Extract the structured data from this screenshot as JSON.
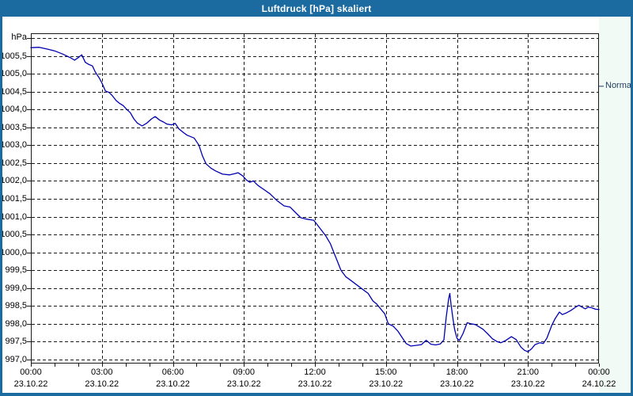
{
  "window": {
    "title": "Luftdruck [hPa] skaliert"
  },
  "colors": {
    "frame": "#1b6ba1",
    "titlebar": "#1b6ba1",
    "title_text": "#ffffff",
    "plot_bg": "#ffffff",
    "right_margin_bg": "#f1faf4",
    "grid": "#1a1a1a",
    "plot_border": "#1a1a1a",
    "line": "#0000b0",
    "axis_label": "#000000",
    "normal_label": "#1f3a5f"
  },
  "chart_data": {
    "type": "line",
    "title": "Luftdruck [hPa] skaliert",
    "unit_label": "hPa",
    "grid": "dashed",
    "y_axis": {
      "min": 997.0,
      "max": 1006.0,
      "tick_step": 0.5,
      "labeled_min": 997.0,
      "labeled_max": 1005.5,
      "decimal_separator": ","
    },
    "x_axis": {
      "hours_span": 24,
      "major_tick_hours": 3,
      "minor_tick_hours": 1,
      "ticks": [
        {
          "time": "00:00",
          "date": "23.10.22"
        },
        {
          "time": "03:00",
          "date": "23.10.22"
        },
        {
          "time": "06:00",
          "date": "23.10.22"
        },
        {
          "time": "09:00",
          "date": "23.10.22"
        },
        {
          "time": "12:00",
          "date": "23.10.22"
        },
        {
          "time": "15:00",
          "date": "23.10.22"
        },
        {
          "time": "18:00",
          "date": "23.10.22"
        },
        {
          "time": "21:00",
          "date": "23.10.22"
        },
        {
          "time": "00:00",
          "date": "24.10.22"
        }
      ]
    },
    "annotations": [
      {
        "label": "Normal",
        "value": 1004.65,
        "side": "right"
      }
    ],
    "series": [
      {
        "name": "Luftdruck",
        "unit": "hPa",
        "points": [
          [
            0.0,
            1005.73
          ],
          [
            0.35,
            1005.74
          ],
          [
            0.7,
            1005.69
          ],
          [
            1.0,
            1005.64
          ],
          [
            1.35,
            1005.55
          ],
          [
            1.7,
            1005.44
          ],
          [
            1.85,
            1005.38
          ],
          [
            2.0,
            1005.45
          ],
          [
            2.15,
            1005.53
          ],
          [
            2.3,
            1005.32
          ],
          [
            2.45,
            1005.26
          ],
          [
            2.6,
            1005.22
          ],
          [
            2.72,
            1005.05
          ],
          [
            2.88,
            1004.89
          ],
          [
            3.0,
            1004.74
          ],
          [
            3.15,
            1004.52
          ],
          [
            3.3,
            1004.48
          ],
          [
            3.45,
            1004.38
          ],
          [
            3.6,
            1004.25
          ],
          [
            3.75,
            1004.17
          ],
          [
            3.9,
            1004.11
          ],
          [
            4.05,
            1004.0
          ],
          [
            4.2,
            1003.91
          ],
          [
            4.35,
            1003.74
          ],
          [
            4.5,
            1003.62
          ],
          [
            4.7,
            1003.54
          ],
          [
            4.9,
            1003.62
          ],
          [
            5.1,
            1003.74
          ],
          [
            5.25,
            1003.8
          ],
          [
            5.45,
            1003.7
          ],
          [
            5.6,
            1003.65
          ],
          [
            5.75,
            1003.59
          ],
          [
            5.95,
            1003.57
          ],
          [
            6.1,
            1003.61
          ],
          [
            6.25,
            1003.46
          ],
          [
            6.45,
            1003.35
          ],
          [
            6.6,
            1003.28
          ],
          [
            6.9,
            1003.2
          ],
          [
            7.1,
            1003.0
          ],
          [
            7.25,
            1002.7
          ],
          [
            7.4,
            1002.48
          ],
          [
            7.6,
            1002.36
          ],
          [
            7.8,
            1002.28
          ],
          [
            8.1,
            1002.19
          ],
          [
            8.4,
            1002.17
          ],
          [
            8.6,
            1002.2
          ],
          [
            8.75,
            1002.23
          ],
          [
            8.95,
            1002.14
          ],
          [
            9.1,
            1002.03
          ],
          [
            9.25,
            1001.96
          ],
          [
            9.4,
            1002.0
          ],
          [
            9.6,
            1001.87
          ],
          [
            9.8,
            1001.78
          ],
          [
            10.1,
            1001.64
          ],
          [
            10.4,
            1001.45
          ],
          [
            10.7,
            1001.3
          ],
          [
            10.95,
            1001.27
          ],
          [
            11.2,
            1001.1
          ],
          [
            11.4,
            1000.97
          ],
          [
            11.65,
            1000.93
          ],
          [
            11.95,
            1000.9
          ],
          [
            12.1,
            1000.77
          ],
          [
            12.45,
            1000.47
          ],
          [
            12.65,
            1000.25
          ],
          [
            12.8,
            1000.0
          ],
          [
            12.95,
            999.75
          ],
          [
            13.1,
            999.5
          ],
          [
            13.3,
            999.32
          ],
          [
            13.55,
            999.2
          ],
          [
            13.95,
            999.0
          ],
          [
            14.25,
            998.85
          ],
          [
            14.45,
            998.64
          ],
          [
            14.6,
            998.56
          ],
          [
            14.95,
            998.28
          ],
          [
            15.1,
            998.0
          ],
          [
            15.3,
            997.94
          ],
          [
            15.5,
            997.8
          ],
          [
            15.7,
            997.6
          ],
          [
            15.85,
            997.45
          ],
          [
            16.05,
            997.38
          ],
          [
            16.3,
            997.4
          ],
          [
            16.5,
            997.42
          ],
          [
            16.7,
            997.54
          ],
          [
            16.9,
            997.43
          ],
          [
            17.1,
            997.41
          ],
          [
            17.3,
            997.44
          ],
          [
            17.45,
            997.55
          ],
          [
            17.55,
            998.2
          ],
          [
            17.65,
            998.7
          ],
          [
            17.7,
            998.85
          ],
          [
            17.75,
            998.55
          ],
          [
            17.82,
            998.2
          ],
          [
            17.9,
            997.85
          ],
          [
            18.0,
            997.6
          ],
          [
            18.1,
            997.53
          ],
          [
            18.25,
            997.72
          ],
          [
            18.43,
            998.03
          ],
          [
            18.6,
            998.0
          ],
          [
            18.78,
            997.98
          ],
          [
            19.1,
            997.85
          ],
          [
            19.3,
            997.72
          ],
          [
            19.5,
            997.58
          ],
          [
            19.7,
            997.5
          ],
          [
            19.85,
            997.47
          ],
          [
            20.05,
            997.53
          ],
          [
            20.3,
            997.64
          ],
          [
            20.5,
            997.56
          ],
          [
            20.7,
            997.35
          ],
          [
            20.85,
            997.26
          ],
          [
            21.0,
            997.22
          ],
          [
            21.15,
            997.3
          ],
          [
            21.3,
            997.42
          ],
          [
            21.5,
            997.47
          ],
          [
            21.65,
            997.45
          ],
          [
            21.8,
            997.6
          ],
          [
            22.0,
            997.95
          ],
          [
            22.15,
            998.15
          ],
          [
            22.33,
            998.33
          ],
          [
            22.45,
            998.26
          ],
          [
            22.6,
            998.3
          ],
          [
            22.8,
            998.37
          ],
          [
            23.0,
            998.46
          ],
          [
            23.15,
            998.52
          ],
          [
            23.3,
            998.46
          ],
          [
            23.42,
            998.42
          ],
          [
            23.55,
            998.47
          ],
          [
            23.7,
            998.45
          ],
          [
            23.85,
            998.41
          ],
          [
            24.0,
            998.4
          ]
        ]
      }
    ]
  }
}
